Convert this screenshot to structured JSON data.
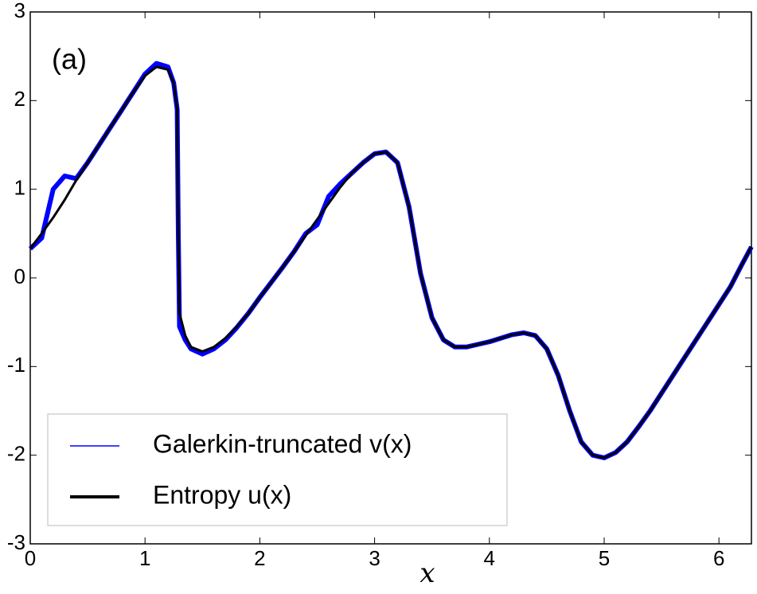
{
  "chart_data": {
    "type": "line",
    "annotation": "(a)",
    "x_label": "x",
    "x": [
      0,
      0.1,
      0.2,
      0.3,
      0.4,
      0.5,
      0.6,
      0.7,
      0.8,
      0.9,
      1.0,
      1.1,
      1.2,
      1.25,
      1.28,
      1.29,
      1.3,
      1.35,
      1.4,
      1.5,
      1.6,
      1.7,
      1.8,
      1.9,
      2.0,
      2.1,
      2.2,
      2.3,
      2.4,
      2.5,
      2.6,
      2.7,
      2.8,
      2.9,
      3.0,
      3.1,
      3.2,
      3.3,
      3.4,
      3.5,
      3.6,
      3.7,
      3.8,
      3.9,
      4.0,
      4.1,
      4.2,
      4.3,
      4.4,
      4.5,
      4.6,
      4.7,
      4.8,
      4.9,
      5.0,
      5.1,
      5.2,
      5.3,
      5.4,
      5.5,
      5.6,
      5.7,
      5.8,
      5.9,
      6.0,
      6.1,
      6.2,
      6.283
    ],
    "series": [
      {
        "name": "Galerkin-truncated v(x)",
        "color": "#0000ff",
        "width": 6,
        "values": [
          0.33,
          0.45,
          1.0,
          1.15,
          1.12,
          1.3,
          1.5,
          1.7,
          1.9,
          2.1,
          2.3,
          2.42,
          2.38,
          2.2,
          1.9,
          0.5,
          -0.55,
          -0.7,
          -0.8,
          -0.86,
          -0.8,
          -0.7,
          -0.56,
          -0.4,
          -0.22,
          -0.05,
          0.12,
          0.3,
          0.5,
          0.6,
          0.92,
          1.06,
          1.18,
          1.3,
          1.4,
          1.42,
          1.3,
          0.8,
          0.05,
          -0.45,
          -0.7,
          -0.78,
          -0.78,
          -0.75,
          -0.72,
          -0.68,
          -0.64,
          -0.62,
          -0.65,
          -0.8,
          -1.1,
          -1.5,
          -1.85,
          -2.0,
          -2.03,
          -1.97,
          -1.85,
          -1.68,
          -1.5,
          -1.3,
          -1.1,
          -0.9,
          -0.7,
          -0.5,
          -0.3,
          -0.1,
          0.15,
          0.35
        ]
      },
      {
        "name": "Entropy u(x)",
        "color": "#000000",
        "width": 3,
        "values": [
          0.33,
          0.5,
          0.68,
          0.88,
          1.1,
          1.3,
          1.5,
          1.7,
          1.9,
          2.1,
          2.28,
          2.38,
          2.35,
          2.2,
          1.9,
          0.5,
          -0.4,
          -0.65,
          -0.78,
          -0.83,
          -0.78,
          -0.68,
          -0.55,
          -0.4,
          -0.22,
          -0.05,
          0.12,
          0.3,
          0.48,
          0.66,
          0.84,
          1.02,
          1.18,
          1.3,
          1.4,
          1.42,
          1.3,
          0.8,
          0.05,
          -0.45,
          -0.7,
          -0.78,
          -0.78,
          -0.75,
          -0.72,
          -0.68,
          -0.64,
          -0.62,
          -0.65,
          -0.8,
          -1.1,
          -1.5,
          -1.85,
          -2.0,
          -2.03,
          -1.97,
          -1.85,
          -1.68,
          -1.5,
          -1.3,
          -1.1,
          -0.9,
          -0.7,
          -0.5,
          -0.3,
          -0.1,
          0.15,
          0.35
        ]
      }
    ],
    "xlim": [
      0,
      6.283
    ],
    "ylim": [
      -3,
      3
    ],
    "xticks": [
      0,
      1,
      2,
      3,
      4,
      5,
      6
    ],
    "yticks": [
      -3,
      -2,
      -1,
      0,
      1,
      2,
      3
    ],
    "legend": "lower left"
  }
}
